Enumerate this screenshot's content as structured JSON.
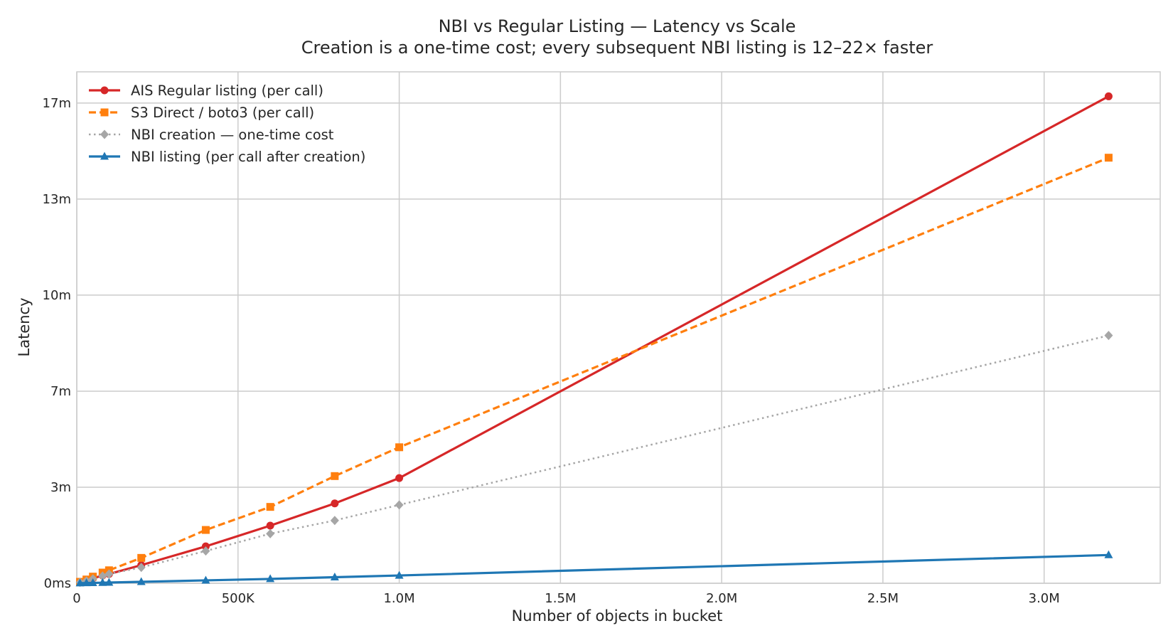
{
  "chart_data": {
    "type": "line",
    "title": "NBI vs Regular Listing — Latency vs Scale",
    "subtitle": "Creation is a one-time cost; every subsequent NBI listing is 12–22× faster",
    "xlabel": "Number of objects in bucket",
    "ylabel": "Latency",
    "xlim": [
      0,
      3360000
    ],
    "ylim": [
      0,
      17.75
    ],
    "grid": true,
    "legend_placement": "top-left",
    "x_ticks": [
      0,
      500000,
      1000000,
      1500000,
      2000000,
      2500000,
      3000000
    ],
    "x_tick_labels": [
      "0",
      "500K",
      "1.0M",
      "1.5M",
      "2.0M",
      "2.5M",
      "3.0M"
    ],
    "y_ticks": [
      0,
      3.333,
      6.667,
      10,
      13.333,
      16.667
    ],
    "y_tick_labels": [
      "0ms",
      "3m",
      "7m",
      "10m",
      "13m",
      "17m"
    ],
    "x": [
      10000,
      30000,
      50000,
      80000,
      100000,
      200000,
      400000,
      600000,
      800000,
      1000000,
      3200000
    ],
    "series": [
      {
        "name": "AIS Regular listing (per call)",
        "color": "#d62728",
        "style": "solid",
        "marker": "circle",
        "values": [
          0.03,
          0.1,
          0.17,
          0.27,
          0.32,
          0.63,
          1.28,
          2.0,
          2.77,
          3.65,
          16.9
        ]
      },
      {
        "name": "S3 Direct / boto3 (per call)",
        "color": "#ff7f0e",
        "style": "dashed",
        "marker": "square",
        "values": [
          0.05,
          0.13,
          0.23,
          0.37,
          0.45,
          0.88,
          1.85,
          2.65,
          3.72,
          4.72,
          14.77
        ]
      },
      {
        "name": "NBI creation — one-time cost",
        "color": "#a6a6a6",
        "style": "dotted",
        "marker": "diamond",
        "values": [
          0.03,
          0.08,
          0.15,
          0.25,
          0.32,
          0.55,
          1.12,
          1.72,
          2.18,
          2.72,
          8.6
        ]
      },
      {
        "name": "NBI listing (per call after creation)",
        "color": "#1f77b4",
        "style": "solid",
        "marker": "triangle",
        "values": [
          0.003,
          0.008,
          0.013,
          0.02,
          0.025,
          0.05,
          0.1,
          0.15,
          0.21,
          0.27,
          0.98
        ]
      }
    ]
  }
}
